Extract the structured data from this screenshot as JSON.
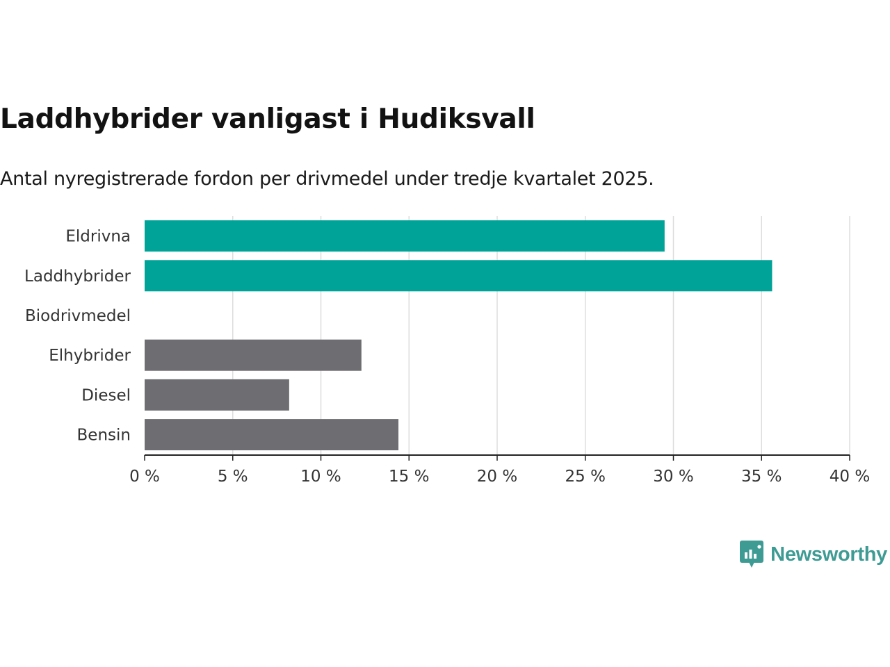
{
  "header": {
    "title": "Laddhybrider vanligast i Hudiksvall",
    "subtitle": "Antal nyregistrerade fordon per drivmedel under tredje kvartalet 2025."
  },
  "brand": {
    "name": "Newsworthy",
    "icon": "bar-chart-speech-bubble-icon",
    "color": "#3e9b94"
  },
  "colors": {
    "highlight": "#00a398",
    "other": "#6e6d72",
    "grid": "#dddddd",
    "axis": "#222222"
  },
  "chart_data": {
    "type": "bar",
    "orientation": "horizontal",
    "title": "Laddhybrider vanligast i Hudiksvall",
    "subtitle": "Antal nyregistrerade fordon per drivmedel under tredje kvartalet 2025.",
    "categories": [
      "Eldrivna",
      "Laddhybrider",
      "Biodrivmedel",
      "Elhybrider",
      "Diesel",
      "Bensin"
    ],
    "values": [
      29.5,
      35.6,
      0,
      12.3,
      8.2,
      14.4
    ],
    "highlighted": [
      true,
      true,
      false,
      false,
      false,
      false
    ],
    "xlim": [
      0,
      40
    ],
    "xticks": [
      0,
      5,
      10,
      15,
      20,
      25,
      30,
      35,
      40
    ],
    "tick_suffix": " %",
    "xlabel": "",
    "ylabel": "",
    "grid": "vertical"
  }
}
